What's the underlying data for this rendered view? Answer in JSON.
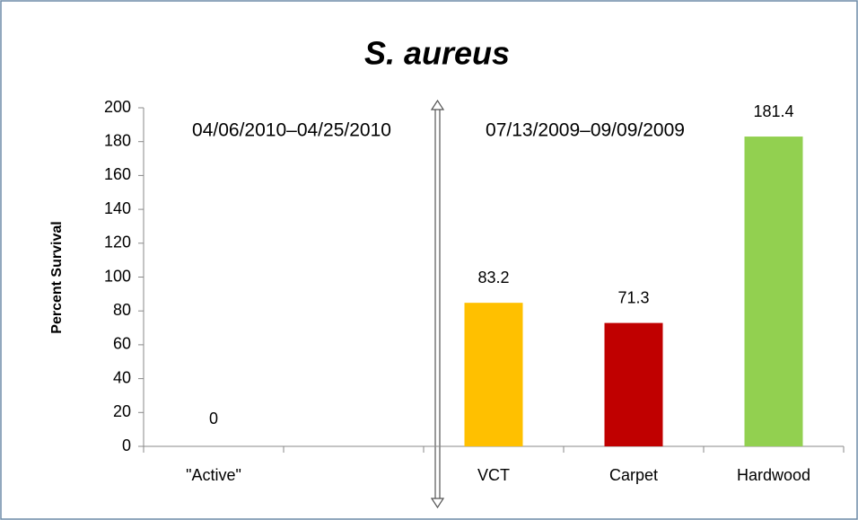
{
  "chart_data": {
    "type": "bar",
    "title": "S. aureus",
    "y_label": "Percent Survival",
    "categories": [
      "\"Active\"",
      null,
      "VCT",
      "Carpet",
      "Hardwood"
    ],
    "values": [
      0,
      null,
      83.2,
      71.3,
      181.4
    ],
    "colors": [
      "#4472c4",
      null,
      "#ffc000",
      "#c00000",
      "#92d050"
    ],
    "ylim": [
      0,
      200
    ],
    "yticks": [
      0,
      20,
      40,
      60,
      80,
      100,
      120,
      140,
      160,
      180,
      200
    ],
    "annotations": [
      "04/06/2010–04/25/2010",
      "07/13/2009–09/09/2009"
    ]
  }
}
